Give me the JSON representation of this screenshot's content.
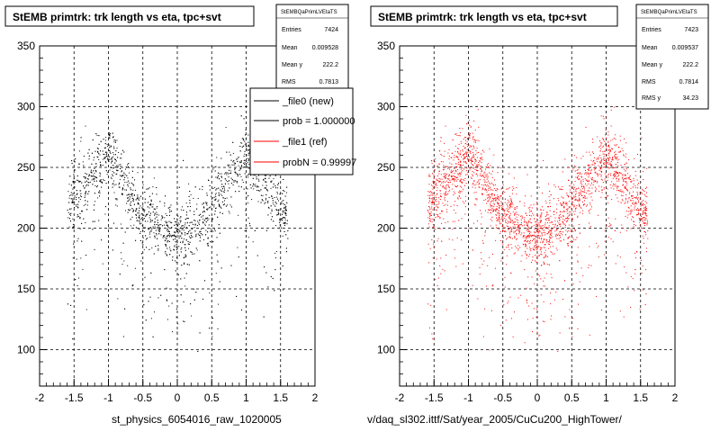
{
  "panels": [
    {
      "title": "StEMB primtrk: trk length vs eta, tpc+svt",
      "stats": {
        "header": "StEMBQaPrimLVEtaTS",
        "entries_label": "Entries",
        "entries": "7424",
        "mean_label": "Mean",
        "mean": "0.009528",
        "meany_label": "Mean y",
        "meany": "222.2",
        "rms_label": "RMS",
        "rms": "0.7813"
      },
      "bottom_label": "st_physics_6054016_raw_1020005"
    },
    {
      "title": "StEMB primtrk: trk length vs eta, tpc+svt",
      "stats": {
        "header": "StEMBQaPrimLVEtaTS",
        "entries_label": "Entries",
        "entries": "7423",
        "mean_label": "Mean",
        "mean": "0.009537",
        "meany_label": "Mean y",
        "meany": "222.2",
        "rms_label": "RMS",
        "rms": "0.7814",
        "rmsy_label": "RMS y",
        "rmsy": "34.23"
      },
      "bottom_label": "v/daq_sl302.ittf/Sat/year_2005/CuCu200_HighTower/"
    }
  ],
  "legend": {
    "items": [
      {
        "label": "_file0 (new)",
        "color": "#000000"
      },
      {
        "label": "prob = 1.000000",
        "color": "#000000"
      },
      {
        "label": "_file1 (ref)",
        "color": "#ff0000"
      },
      {
        "label": "probN = 0.99997",
        "color": "#ff0000"
      }
    ]
  },
  "chart_data": [
    {
      "type": "scatter",
      "title": "StEMB primtrk: trk length vs eta, tpc+svt",
      "series": [
        {
          "name": "_file0 (new)",
          "color": "#000000",
          "density_profile": {
            "x": [
              -1.6,
              -1.4,
              -1.2,
              -1.0,
              -0.8,
              -0.6,
              -0.4,
              -0.2,
              0.0,
              0.2,
              0.4,
              0.6,
              0.8,
              1.0,
              1.2,
              1.4,
              1.6
            ],
            "y": [
              220,
              235,
              245,
              262,
              243,
              218,
              210,
              200,
              195,
              200,
              212,
              230,
              243,
              262,
              244,
              222,
              210
            ]
          }
        }
      ],
      "xlim": [
        -2,
        2
      ],
      "ylim": [
        70,
        350
      ],
      "x_ticks": [
        -2,
        -1.5,
        -1,
        -0.5,
        0,
        0.5,
        1,
        1.5,
        2
      ],
      "y_ticks": [
        100,
        150,
        200,
        250,
        300,
        350
      ],
      "grid": true
    },
    {
      "type": "scatter",
      "title": "StEMB primtrk: trk length vs eta, tpc+svt",
      "series": [
        {
          "name": "_file1 (ref)",
          "color": "#ff0000",
          "density_profile": {
            "x": [
              -1.6,
              -1.4,
              -1.2,
              -1.0,
              -0.8,
              -0.6,
              -0.4,
              -0.2,
              0.0,
              0.2,
              0.4,
              0.6,
              0.8,
              1.0,
              1.2,
              1.4,
              1.6
            ],
            "y": [
              220,
              235,
              245,
              262,
              243,
              218,
              210,
              200,
              195,
              200,
              212,
              230,
              243,
              262,
              244,
              222,
              210
            ]
          }
        }
      ],
      "xlim": [
        -2,
        2
      ],
      "ylim": [
        70,
        350
      ],
      "x_ticks": [
        -2,
        -1.5,
        -1,
        -0.5,
        0,
        0.5,
        1,
        1.5,
        2
      ],
      "y_ticks": [
        100,
        150,
        200,
        250,
        300,
        350
      ],
      "grid": true
    }
  ]
}
